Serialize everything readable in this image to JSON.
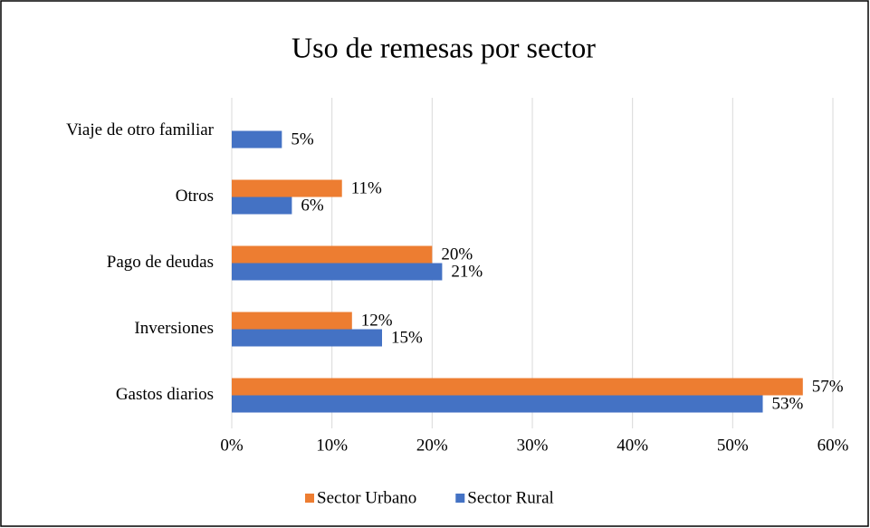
{
  "chart_data": {
    "type": "hbar",
    "title": "Uso de remesas por sector",
    "categories": [
      "Gastos diarios",
      "Inversiones",
      "Pago de deudas",
      "Otros",
      "Viaje de otro familiar"
    ],
    "series": [
      {
        "name": "Sector Urbano",
        "color": "#ed7d31",
        "values": [
          57,
          12,
          20,
          11,
          null
        ],
        "value_labels": [
          "57%",
          "12%",
          "20%",
          "11%",
          null
        ]
      },
      {
        "name": "Sector Rural",
        "color": "#4472c4",
        "values": [
          53,
          15,
          21,
          6,
          5
        ],
        "value_labels": [
          "53%",
          "15%",
          "21%",
          "6%",
          "5%"
        ]
      }
    ],
    "xlim": [
      0,
      60
    ],
    "xticks": [
      {
        "value": 0,
        "label": "0%"
      },
      {
        "value": 10,
        "label": "10%"
      },
      {
        "value": 20,
        "label": "20%"
      },
      {
        "value": 30,
        "label": "30%"
      },
      {
        "value": 40,
        "label": "40%"
      },
      {
        "value": 50,
        "label": "50%"
      },
      {
        "value": 60,
        "label": "60%"
      }
    ],
    "grid": true,
    "legend": "bottom"
  }
}
